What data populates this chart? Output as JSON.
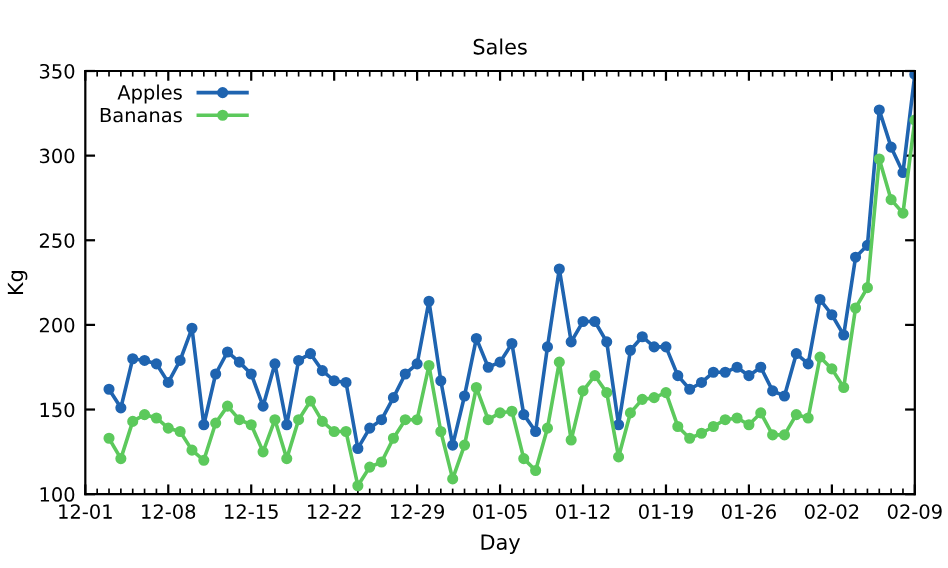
{
  "chart_data": {
    "type": "line",
    "title": "Sales",
    "xlabel": "Day",
    "ylabel": "Kg",
    "categories": [
      "12-01",
      null,
      null,
      null,
      null,
      null,
      null,
      "12-08",
      null,
      null,
      null,
      null,
      null,
      null,
      "12-15",
      null,
      null,
      null,
      null,
      null,
      null,
      "12-22",
      null,
      null,
      null,
      null,
      null,
      null,
      "12-29",
      null,
      null,
      null,
      null,
      null,
      null,
      "01-05",
      null,
      null,
      null,
      null,
      null,
      null,
      "01-12",
      null,
      null,
      null,
      null,
      null,
      null,
      "01-19",
      null,
      null,
      null,
      null,
      null,
      null,
      "01-26",
      null,
      null,
      null,
      null,
      null,
      null,
      "02-02",
      null,
      null,
      null,
      null,
      null,
      null,
      "02-09"
    ],
    "series": [
      {
        "name": "Apples",
        "color": "#1f64b0",
        "values": [
          null,
          null,
          162,
          151,
          180,
          179,
          177,
          166,
          179,
          198,
          141,
          171,
          184,
          178,
          171,
          152,
          177,
          141,
          179,
          183,
          173,
          167,
          166,
          127,
          139,
          144,
          157,
          171,
          177,
          214,
          167,
          129,
          158,
          192,
          175,
          178,
          189,
          147,
          137,
          187,
          233,
          190,
          202,
          202,
          190,
          141,
          185,
          193,
          187,
          187,
          170,
          162,
          166,
          172,
          172,
          175,
          170,
          175,
          161,
          158,
          183,
          177,
          215,
          206,
          194,
          240,
          247,
          327,
          305,
          290,
          348
        ]
      },
      {
        "name": "Bananas",
        "color": "#5cc95c",
        "values": [
          null,
          null,
          133,
          121,
          143,
          147,
          145,
          139,
          137,
          126,
          120,
          142,
          152,
          144,
          141,
          125,
          144,
          121,
          144,
          155,
          143,
          137,
          137,
          105,
          116,
          119,
          133,
          144,
          144,
          176,
          137,
          109,
          129,
          163,
          144,
          148,
          149,
          121,
          114,
          139,
          178,
          132,
          161,
          170,
          160,
          122,
          148,
          156,
          157,
          160,
          140,
          133,
          136,
          140,
          144,
          145,
          141,
          148,
          135,
          135,
          147,
          145,
          181,
          174,
          163,
          210,
          222,
          298,
          274,
          266,
          321
        ]
      }
    ],
    "ylim": [
      100,
      350
    ],
    "yticks": [
      100,
      150,
      200,
      250,
      300,
      350
    ],
    "legend": "top left",
    "marker": "circle",
    "line_style": "solid",
    "grid": false
  }
}
